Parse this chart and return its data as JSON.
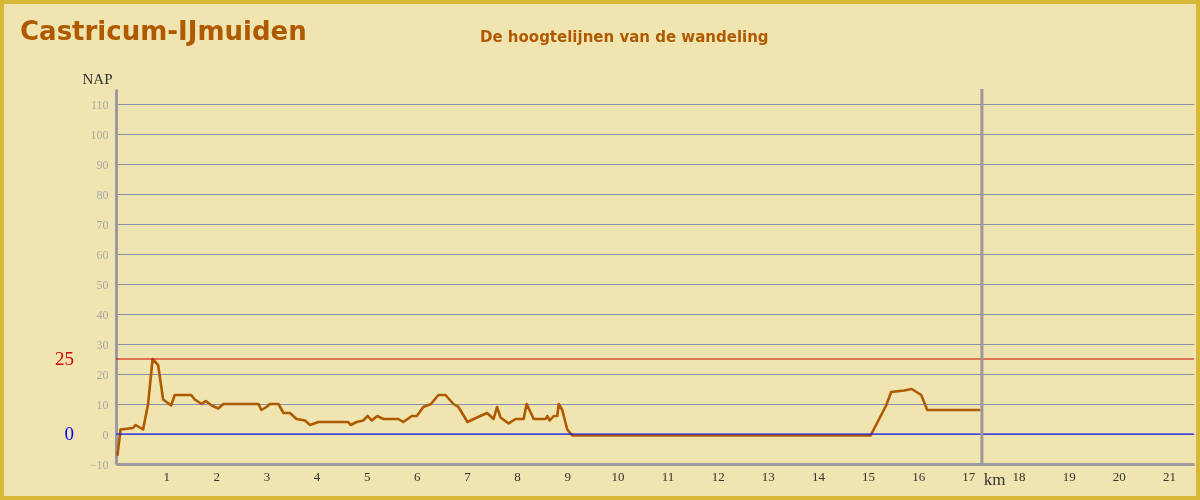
{
  "chart_data": {
    "type": "line",
    "title": "Castricum-IJmuiden",
    "subtitle": "De hoogtelijnen van de wandeling",
    "xlabel": "km",
    "ylabel": "NAP",
    "series": [
      {
        "color": "#b05a00",
        "x": [
          0.03,
          0.09,
          0.34,
          0.39,
          0.54,
          0.64,
          0.73,
          0.84,
          0.94,
          1.1,
          1.17,
          1.5,
          1.57,
          1.71,
          1.79,
          1.91,
          2.04,
          2.14,
          2.84,
          2.9,
          3.0,
          3.07,
          3.24,
          3.34,
          3.47,
          3.6,
          3.77,
          3.87,
          4.04,
          4.63,
          4.68,
          4.8,
          4.93,
          5.02,
          5.1,
          5.21,
          5.33,
          5.63,
          5.73,
          5.9,
          6.0,
          6.13,
          6.28,
          6.43,
          6.57,
          6.73,
          6.83,
          7.01,
          7.2,
          7.4,
          7.53,
          7.6,
          7.67,
          7.83,
          7.97,
          8.13,
          8.19,
          8.33,
          8.57,
          8.6,
          8.65,
          8.73,
          8.8,
          8.83,
          8.9,
          9.0,
          9.1,
          15.05,
          15.36,
          15.46,
          15.72,
          15.87,
          16.06,
          16.18,
          17.22
        ],
        "values": [
          -7,
          1.5,
          2,
          3,
          1.5,
          10,
          25,
          23,
          11.5,
          9.5,
          13,
          13,
          11.5,
          10,
          11,
          9.5,
          8.5,
          10,
          10,
          8,
          9,
          10,
          10,
          7,
          7,
          5,
          4.5,
          3,
          4,
          4,
          3,
          4,
          4.5,
          6,
          4.5,
          6,
          5,
          5,
          4,
          6,
          6,
          9,
          10,
          13,
          13,
          10,
          9,
          4,
          5.5,
          7,
          5,
          9,
          5.5,
          3.5,
          5,
          5,
          10,
          5,
          5,
          6,
          4.5,
          6,
          6,
          10,
          8,
          1.5,
          -0.5,
          -0.5,
          9.5,
          14,
          14.5,
          15,
          13,
          8,
          8
        ]
      }
    ],
    "xlim": [
      0,
      21.5
    ],
    "xticks": [
      1,
      2,
      3,
      4,
      5,
      6,
      7,
      8,
      9,
      10,
      11,
      12,
      13,
      14,
      15,
      16,
      17,
      18,
      19,
      20,
      21
    ],
    "ylim": [
      -10,
      115
    ],
    "yticks": [
      -10,
      0,
      10,
      20,
      30,
      40,
      50,
      60,
      70,
      80,
      90,
      100,
      110
    ],
    "grid": "y",
    "ref_lines": [
      {
        "axis": "y",
        "value": 25,
        "label": "25",
        "color": "#d00000"
      },
      {
        "axis": "y",
        "value": 0,
        "label": "0",
        "color": "#0000ff"
      },
      {
        "axis": "x",
        "value": 17.27,
        "label": null,
        "color": "#999999"
      }
    ]
  }
}
